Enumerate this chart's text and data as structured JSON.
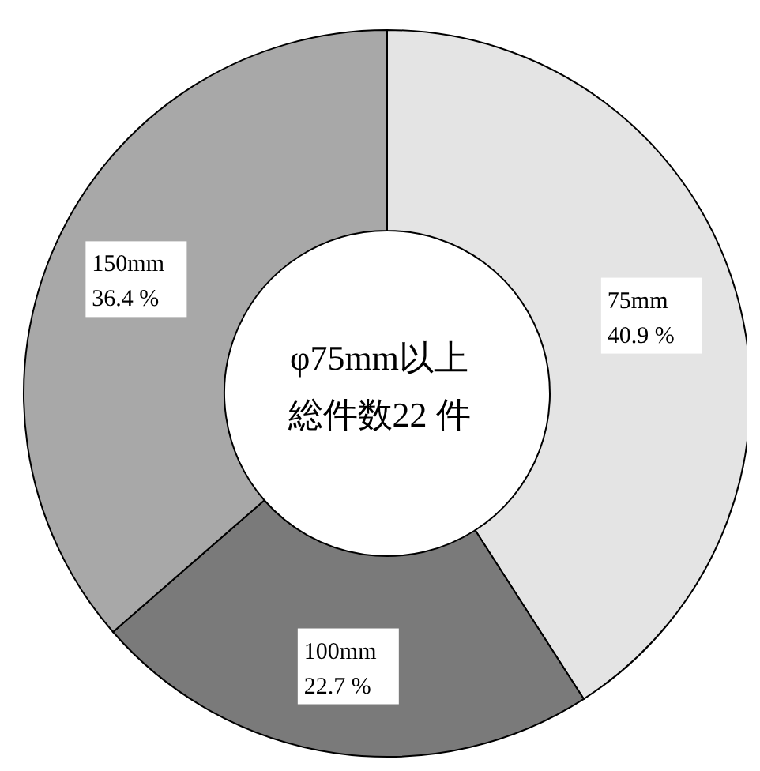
{
  "chart_data": {
    "type": "donut",
    "categories": [
      "75mm",
      "100mm",
      "150mm"
    ],
    "values": [
      40.9,
      22.7,
      36.4
    ],
    "colors": [
      "#e4e4e4",
      "#7a7a7a",
      "#a8a8a8"
    ],
    "value_labels": [
      "40.9 %",
      "22.7 %",
      "36.4 %"
    ],
    "annotations": [
      "φ75mm以上",
      "総件数22 件"
    ]
  }
}
